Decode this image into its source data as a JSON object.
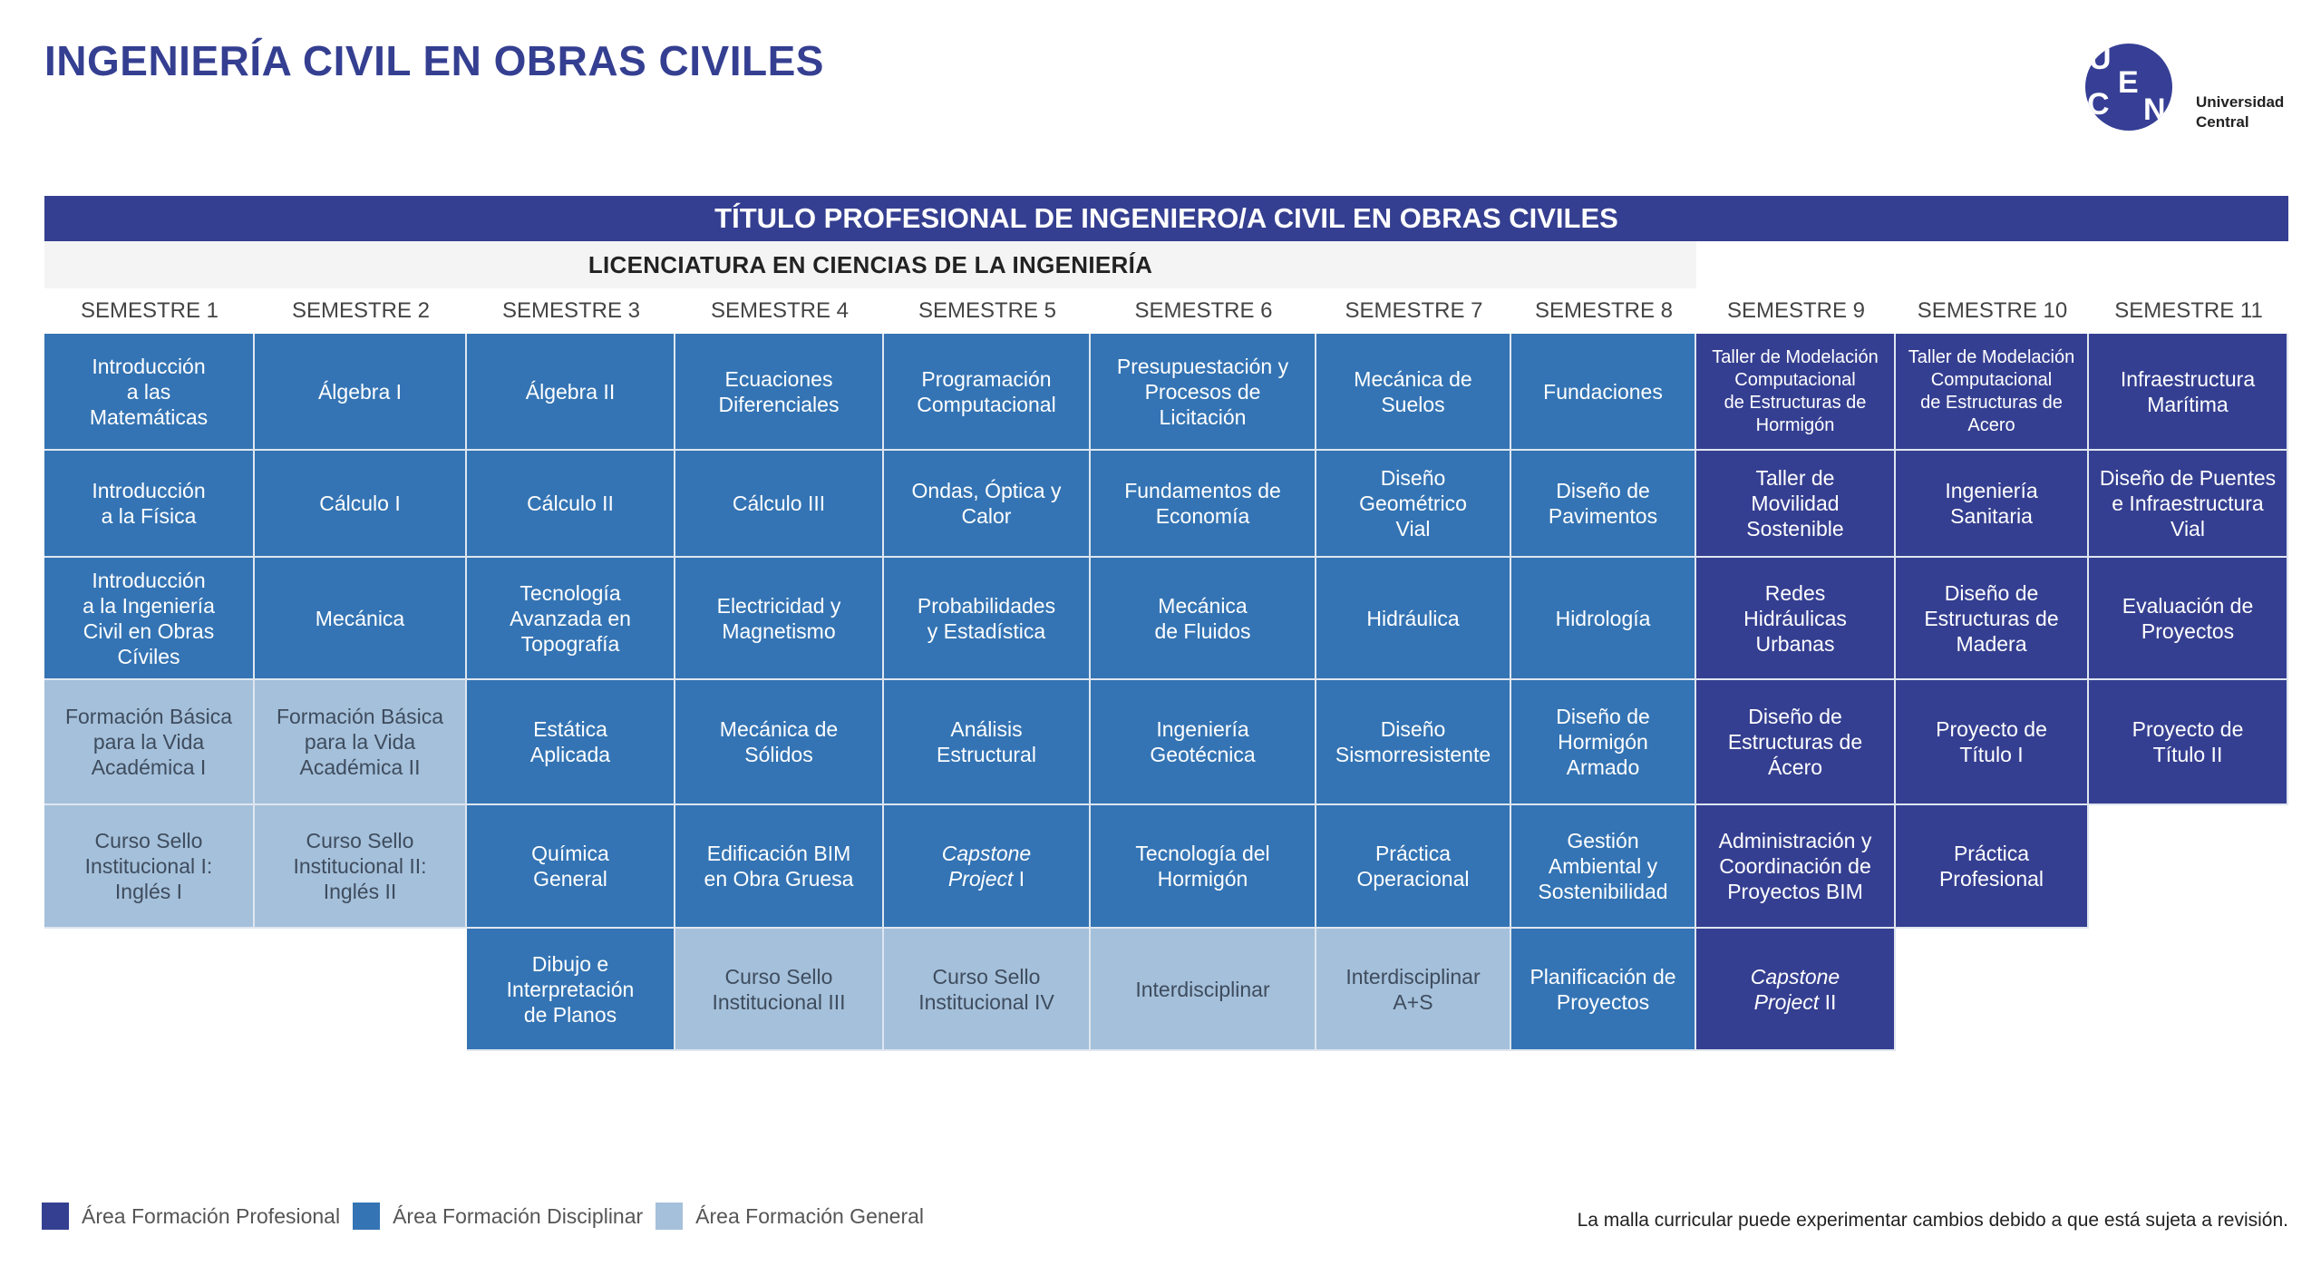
{
  "page_title": "INGENIERÍA CIVIL EN OBRAS CIVILES",
  "logo": {
    "letters": [
      "U",
      "C",
      "E",
      "N"
    ],
    "name_line1": "Universidad",
    "name_line2": "Central"
  },
  "title_bar": "TÍTULO PROFESIONAL DE INGENIERO/A CIVIL EN OBRAS CIVILES",
  "licenciatura_bar": "LICENCIATURA EN CIENCIAS DE LA INGENIERÍA",
  "colors": {
    "P": "#353f91",
    "D": "#3474b4",
    "G": "#a5c0da"
  },
  "semesters": [
    {
      "label": "SEMESTRE 1",
      "courses": [
        {
          "text": "Introducción\na las\nMatemáticas",
          "type": "D"
        },
        {
          "text": "Introducción\na la Física",
          "type": "D"
        },
        {
          "text": "Introducción\na la Ingeniería\nCivil en Obras\nCíviles",
          "type": "D"
        },
        {
          "text": "Formación Básica\npara la Vida\nAcadémica I",
          "type": "G"
        },
        {
          "text": "Curso Sello\nInstitucional I:\nInglés I",
          "type": "G"
        }
      ]
    },
    {
      "label": "SEMESTRE 2",
      "courses": [
        {
          "text": "Álgebra I",
          "type": "D"
        },
        {
          "text": "Cálculo I",
          "type": "D"
        },
        {
          "text": "Mecánica",
          "type": "D"
        },
        {
          "text": "Formación Básica\npara la Vida\nAcadémica II",
          "type": "G"
        },
        {
          "text": "Curso Sello\nInstitucional II:\nInglés II",
          "type": "G"
        }
      ]
    },
    {
      "label": "SEMESTRE 3",
      "courses": [
        {
          "text": "Álgebra II",
          "type": "D"
        },
        {
          "text": "Cálculo II",
          "type": "D"
        },
        {
          "text": "Tecnología\nAvanzada en\nTopografía",
          "type": "D"
        },
        {
          "text": "Estática\nAplicada",
          "type": "D"
        },
        {
          "text": "Química\nGeneral",
          "type": "D"
        },
        {
          "text": "Dibujo e\nInterpretación\nde Planos",
          "type": "D"
        }
      ]
    },
    {
      "label": "SEMESTRE 4",
      "courses": [
        {
          "text": "Ecuaciones\nDiferenciales",
          "type": "D"
        },
        {
          "text": "Cálculo III",
          "type": "D"
        },
        {
          "text": "Electricidad y\nMagnetismo",
          "type": "D"
        },
        {
          "text": "Mecánica de\nSólidos",
          "type": "D"
        },
        {
          "text": "Edificación BIM\nen Obra Gruesa",
          "type": "D"
        },
        {
          "text": "Curso Sello\nInstitucional III",
          "type": "G"
        }
      ]
    },
    {
      "label": "SEMESTRE 5",
      "courses": [
        {
          "text": "Programación\nComputacional",
          "type": "D"
        },
        {
          "text": "Ondas, Óptica y\nCalor",
          "type": "D"
        },
        {
          "text": "Probabilidades\ny Estadística",
          "type": "D"
        },
        {
          "text": "Análisis\nEstructural",
          "type": "D"
        },
        {
          "italic": "Capstone\nProject",
          "text": " I",
          "type": "D"
        },
        {
          "text": "Curso Sello\nInstitucional IV",
          "type": "G"
        }
      ]
    },
    {
      "label": "SEMESTRE 6",
      "courses": [
        {
          "text": "Presupuestación y\nProcesos de\nLicitación",
          "type": "D"
        },
        {
          "text": "Fundamentos de\nEconomía",
          "type": "D"
        },
        {
          "text": "Mecánica\nde Fluidos",
          "type": "D"
        },
        {
          "text": "Ingeniería\nGeotécnica",
          "type": "D"
        },
        {
          "text": "Tecnología del\nHormigón",
          "type": "D"
        },
        {
          "text": "Interdisciplinar",
          "type": "G"
        }
      ]
    },
    {
      "label": "SEMESTRE 7",
      "courses": [
        {
          "text": "Mecánica de\nSuelos",
          "type": "D"
        },
        {
          "text": "Diseño\nGeométrico\nVial",
          "type": "D"
        },
        {
          "text": "Hidráulica",
          "type": "D"
        },
        {
          "text": "Diseño\nSismorresistente",
          "type": "D"
        },
        {
          "text": "Práctica\nOperacional",
          "type": "D"
        },
        {
          "text": "Interdisciplinar\nA+S",
          "type": "G"
        }
      ]
    },
    {
      "label": "SEMESTRE 8",
      "courses": [
        {
          "text": "Fundaciones",
          "type": "D"
        },
        {
          "text": "Diseño de\nPavimentos",
          "type": "D"
        },
        {
          "text": "Hidrología",
          "type": "D"
        },
        {
          "text": "Diseño de\nHormigón\nArmado",
          "type": "D"
        },
        {
          "text": "Gestión\nAmbiental y\nSostenibilidad",
          "type": "D"
        },
        {
          "text": "Planificación de\nProyectos",
          "type": "D"
        }
      ]
    },
    {
      "label": "SEMESTRE 9",
      "courses": [
        {
          "text": "Taller de Modelación\nComputacional\nde Estructuras de\nHormigón",
          "type": "P",
          "small": true
        },
        {
          "text": "Taller de\nMovilidad\nSostenible",
          "type": "P"
        },
        {
          "text": "Redes\nHidráulicas\nUrbanas",
          "type": "P"
        },
        {
          "text": "Diseño de\nEstructuras de\nÁcero",
          "type": "P"
        },
        {
          "text": "Administración y\nCoordinación de\nProyectos BIM",
          "type": "P"
        },
        {
          "italic": "Capstone\nProject",
          "text": " II",
          "type": "P"
        }
      ]
    },
    {
      "label": "SEMESTRE 10",
      "courses": [
        {
          "text": "Taller de Modelación\nComputacional\nde Estructuras de\nAcero",
          "type": "P",
          "small": true
        },
        {
          "text": "Ingeniería\nSanitaria",
          "type": "P"
        },
        {
          "text": "Diseño de\nEstructuras de\nMadera",
          "type": "P"
        },
        {
          "text": "Proyecto de\nTítulo I",
          "type": "P"
        },
        {
          "text": "Práctica\nProfesional",
          "type": "P"
        }
      ]
    },
    {
      "label": "SEMESTRE 11",
      "courses": [
        {
          "text": "Infraestructura\nMarítima",
          "type": "P"
        },
        {
          "text": "Diseño de Puentes\ne Infraestructura\nVial",
          "type": "P"
        },
        {
          "text": "Evaluación de\nProyectos",
          "type": "P"
        },
        {
          "text": "Proyecto de\nTítulo II",
          "type": "P"
        }
      ]
    }
  ],
  "legend": [
    {
      "label": "Área Formación Profesional",
      "type": "P"
    },
    {
      "label": "Área Formación Disciplinar",
      "type": "D"
    },
    {
      "label": "Área Formación General",
      "type": "G"
    }
  ],
  "footnote": "La malla curricular puede experimentar cambios debido a que está sujeta a revisión."
}
